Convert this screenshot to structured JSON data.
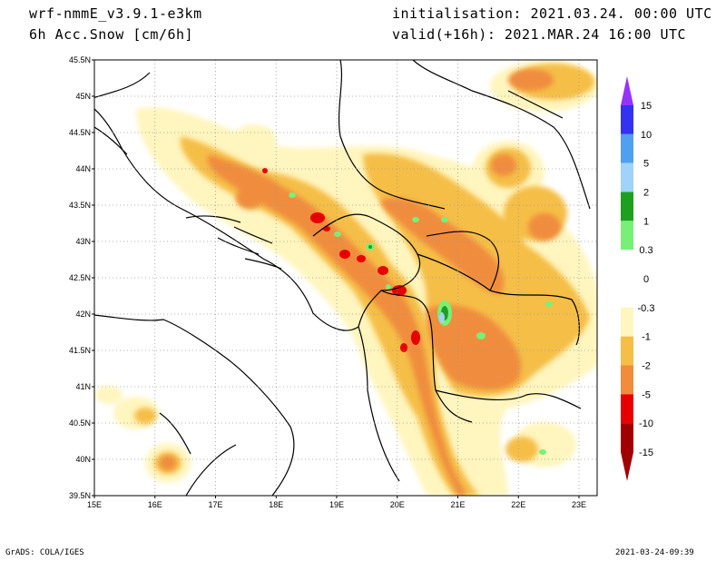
{
  "header": {
    "model": "wrf-nmmE_v3.9.1-e3km",
    "variable": "6h Acc.Snow [cm/6h]",
    "init": "initialisation: 2021.03.24.  00:00 UTC",
    "valid": "valid(+16h): 2021.MAR.24 16:00 UTC"
  },
  "footer": {
    "left": "GrADS: COLA/IGES",
    "right": "2021-03-24-09:39"
  },
  "map": {
    "lon_range": [
      15,
      23.3
    ],
    "lat_range": [
      39.5,
      45.5
    ],
    "lat_ticks": [
      {
        "v": 45.5,
        "label": "45.5N"
      },
      {
        "v": 45,
        "label": "45N"
      },
      {
        "v": 44.5,
        "label": "44.5N"
      },
      {
        "v": 44,
        "label": "44N"
      },
      {
        "v": 43.5,
        "label": "43.5N"
      },
      {
        "v": 43,
        "label": "43N"
      },
      {
        "v": 42.5,
        "label": "42.5N"
      },
      {
        "v": 42,
        "label": "42N"
      },
      {
        "v": 41.5,
        "label": "41.5N"
      },
      {
        "v": 41,
        "label": "41N"
      },
      {
        "v": 40.5,
        "label": "40.5N"
      },
      {
        "v": 40,
        "label": "40N"
      },
      {
        "v": 39.5,
        "label": "39.5N"
      }
    ],
    "lon_ticks": [
      {
        "v": 15,
        "label": "15E"
      },
      {
        "v": 16,
        "label": "16E"
      },
      {
        "v": 17,
        "label": "17E"
      },
      {
        "v": 18,
        "label": "18E"
      },
      {
        "v": 19,
        "label": "19E"
      },
      {
        "v": 20,
        "label": "20E"
      },
      {
        "v": 21,
        "label": "21E"
      },
      {
        "v": 22,
        "label": "22E"
      },
      {
        "v": 23,
        "label": "23E"
      }
    ],
    "grid": true
  },
  "colorbar": {
    "colors": [
      "#a00000",
      "#e60000",
      "#f08c3c",
      "#f5be46",
      "#fff5be",
      "#ffffff",
      "#ffffff",
      "#78f078",
      "#1ea01e",
      "#a0d2fa",
      "#50a0f0",
      "#3232f0",
      "#9632fa"
    ],
    "labels": [
      "-15",
      "-10",
      "-5",
      "-2",
      "-1",
      "-0.3",
      "0",
      "0.3",
      "1",
      "2",
      "5",
      "10",
      "15"
    ]
  },
  "colors": {
    "light": "#fff5be",
    "orange_light": "#f5be46",
    "orange": "#f08c3c",
    "red": "#e60000",
    "green": "#78f078",
    "green_dark": "#1ea01e",
    "blue_light": "#a0d2fa",
    "blue": "#50a0f0"
  }
}
